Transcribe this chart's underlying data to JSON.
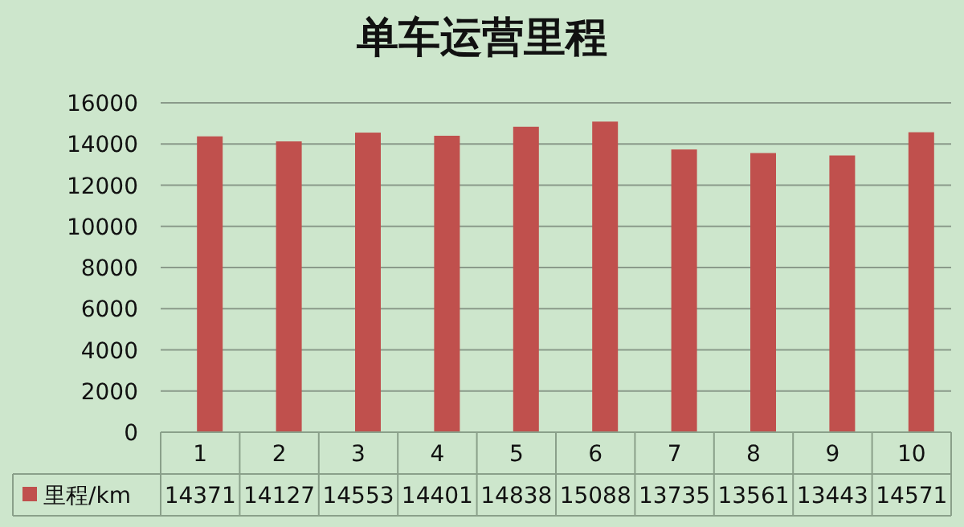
{
  "chart_data": {
    "type": "bar",
    "title": "单车运营里程",
    "categories": [
      "1",
      "2",
      "3",
      "4",
      "5",
      "6",
      "7",
      "8",
      "9",
      "10"
    ],
    "series": [
      {
        "name": "里程/km",
        "color": "#c0504d",
        "values": [
          14371,
          14127,
          14553,
          14401,
          14838,
          15088,
          13735,
          13561,
          13443,
          14571
        ]
      }
    ],
    "ylim": [
      0,
      16000
    ],
    "yticks": [
      0,
      2000,
      4000,
      6000,
      8000,
      10000,
      12000,
      14000,
      16000
    ],
    "grid": "y",
    "data_labels": true,
    "legend": "bottom"
  }
}
